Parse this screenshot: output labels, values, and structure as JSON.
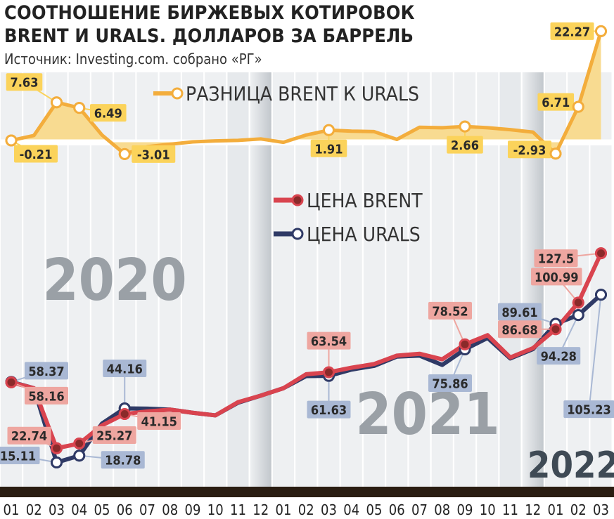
{
  "title_line1": "СООТНОШЕНИЕ БИРЖЕВЫХ КОТИРОВОК",
  "title_line2": "BRENT И URALS. ДОЛЛАРОВ ЗА БАРРЕЛЬ",
  "source": "Источник: Investing.com. собрано «РГ»",
  "colors": {
    "brent": "#d9444f",
    "urals": "#2f3a66",
    "spread": "#f3ad3c",
    "spread_fill": "#f8db91",
    "year_text": "#9aa0a6",
    "year_2022": "#3f4a55",
    "axis_bar": "#2a1d12",
    "label_gold": "#fbd35b",
    "label_pink": "#eea6a0",
    "label_blue": "#a9b8d4"
  },
  "chart_data": {
    "type": "line",
    "categories": [
      "01",
      "02",
      "03",
      "04",
      "05",
      "06",
      "07",
      "08",
      "09",
      "10",
      "11",
      "12",
      "01",
      "02",
      "03",
      "04",
      "05",
      "06",
      "07",
      "08",
      "09",
      "10",
      "11",
      "12",
      "01",
      "02",
      "03"
    ],
    "year_labels": [
      "2020",
      "2021",
      "2022"
    ],
    "series": [
      {
        "name": "ЦЕНА BRENT",
        "key": "brent",
        "values": [
          58.16,
          55,
          22.74,
          25.27,
          35,
          41.15,
          42.5,
          43.5,
          41.8,
          40.4,
          47.5,
          51,
          55,
          62.5,
          63.54,
          66,
          68,
          72.5,
          73.5,
          70.5,
          78.52,
          83.5,
          71.5,
          76.5,
          86.68,
          100.99,
          127.5
        ],
        "marked_indices": [
          0,
          2,
          3,
          5,
          14,
          20,
          24,
          25,
          26
        ]
      },
      {
        "name": "ЦЕНА URALS",
        "key": "urals",
        "values": [
          58.37,
          55,
          15.11,
          18.78,
          36,
          44.16,
          44,
          43.5,
          41.8,
          40.4,
          47.2,
          51,
          55,
          61.5,
          61.63,
          65,
          67,
          72,
          72.5,
          67.5,
          75.86,
          82,
          71,
          76,
          89.61,
          94.28,
          105.23
        ],
        "marked_indices": [
          0,
          2,
          3,
          5,
          14,
          20,
          24,
          25,
          26
        ]
      },
      {
        "name": "РАЗНИЦА BRENT К URALS",
        "key": "spread",
        "values": [
          -0.21,
          0.8,
          7.63,
          6.49,
          0.9,
          -3.01,
          -1.5,
          -1.0,
          -0.5,
          -0.3,
          -0.2,
          0.1,
          -0.6,
          0.9,
          1.91,
          1.7,
          1.6,
          0.0,
          2.5,
          2.4,
          2.66,
          2.4,
          2.0,
          1.5,
          -2.93,
          6.71,
          22.27
        ],
        "marked_indices": [
          0,
          2,
          3,
          5,
          14,
          20,
          24,
          25,
          26
        ]
      }
    ],
    "data_labels": [
      {
        "series": "spread",
        "index": 2,
        "text": "7.63"
      },
      {
        "series": "spread",
        "index": 0,
        "text": "-0.21"
      },
      {
        "series": "spread",
        "index": 3,
        "text": "6.49"
      },
      {
        "series": "spread",
        "index": 5,
        "text": "-3.01"
      },
      {
        "series": "spread",
        "index": 14,
        "text": "1.91"
      },
      {
        "series": "spread",
        "index": 20,
        "text": "2.66"
      },
      {
        "series": "spread",
        "index": 24,
        "text": "-2.93"
      },
      {
        "series": "spread",
        "index": 25,
        "text": "6.71"
      },
      {
        "series": "spread",
        "index": 26,
        "text": "22.27"
      },
      {
        "series": "urals",
        "index": 0,
        "text": "58.37"
      },
      {
        "series": "brent",
        "index": 0,
        "text": "58.16"
      },
      {
        "series": "brent",
        "index": 2,
        "text": "22.74"
      },
      {
        "series": "urals",
        "index": 2,
        "text": "15.11"
      },
      {
        "series": "urals",
        "index": 5,
        "text": "44.16"
      },
      {
        "series": "brent",
        "index": 5,
        "text": "41.15"
      },
      {
        "series": "brent",
        "index": 3,
        "text": "25.27"
      },
      {
        "series": "urals",
        "index": 3,
        "text": "18.78"
      },
      {
        "series": "brent",
        "index": 14,
        "text": "63.54"
      },
      {
        "series": "urals",
        "index": 14,
        "text": "61.63"
      },
      {
        "series": "brent",
        "index": 20,
        "text": "78.52"
      },
      {
        "series": "urals",
        "index": 20,
        "text": "75.86"
      },
      {
        "series": "brent",
        "index": 26,
        "text": "127.5"
      },
      {
        "series": "brent",
        "index": 25,
        "text": "100.99"
      },
      {
        "series": "urals",
        "index": 24,
        "text": "89.61"
      },
      {
        "series": "brent",
        "index": 24,
        "text": "86.68"
      },
      {
        "series": "urals",
        "index": 25,
        "text": "94.28"
      },
      {
        "series": "urals",
        "index": 26,
        "text": "105.23"
      }
    ],
    "grid": true,
    "legend_position": "inside-top"
  }
}
